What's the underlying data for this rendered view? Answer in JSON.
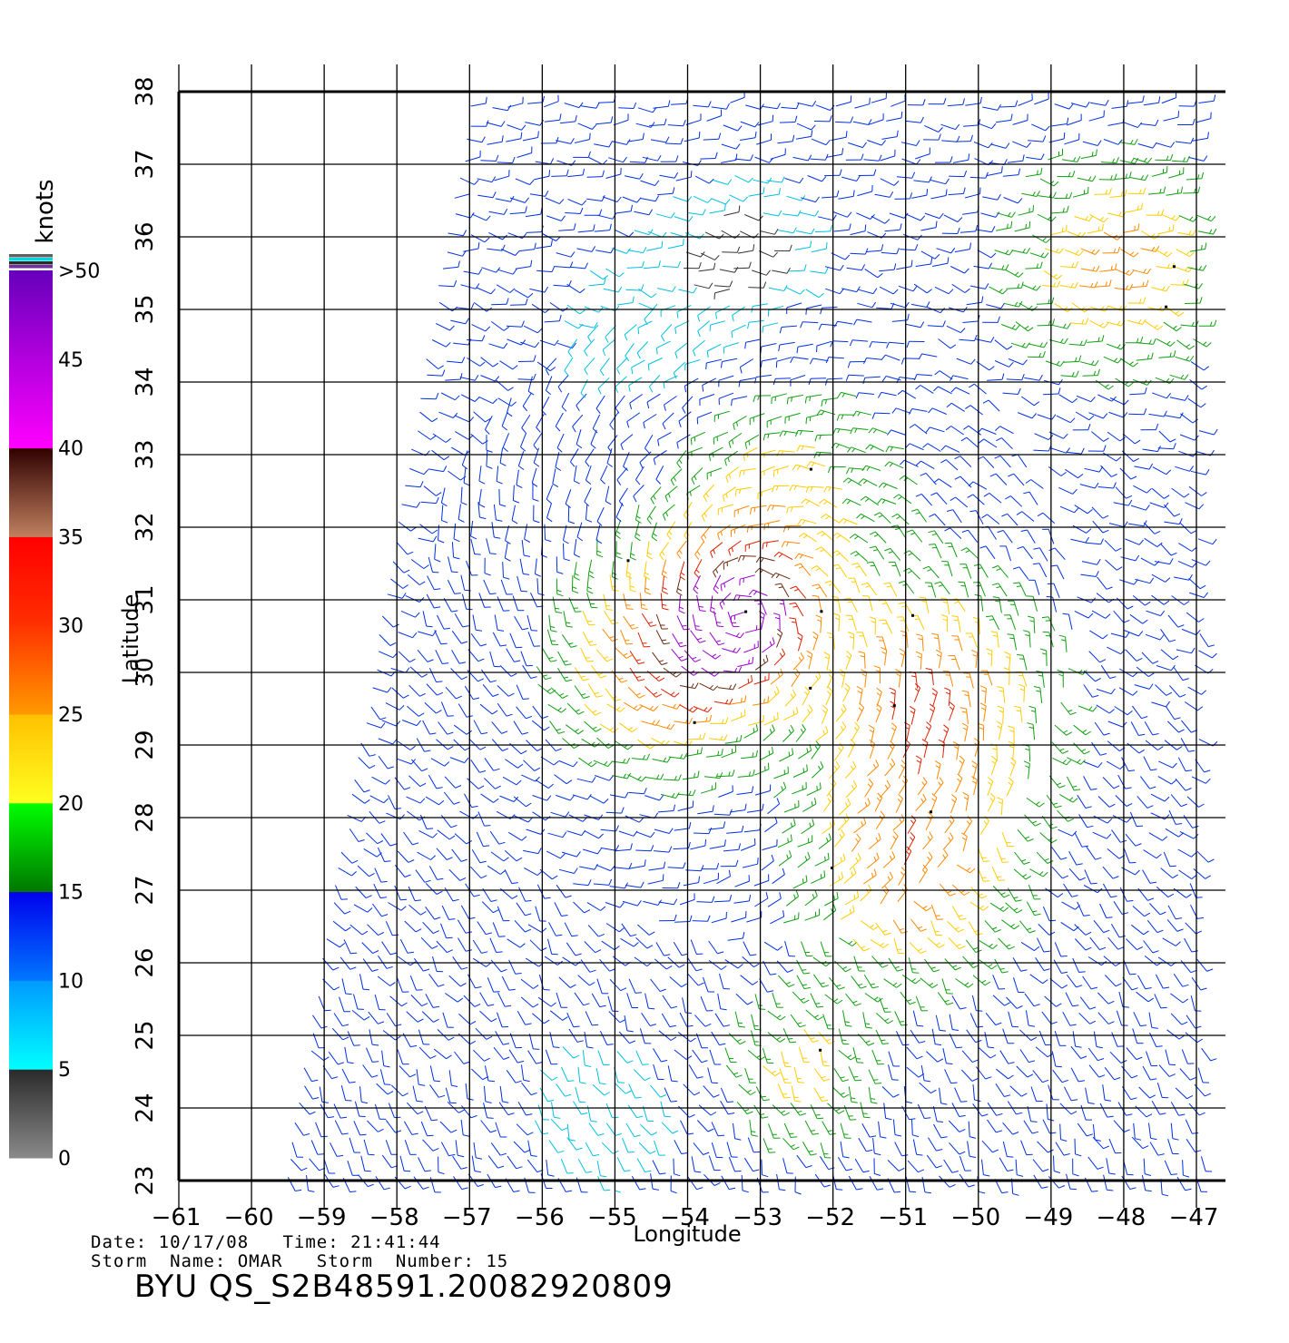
{
  "chart_data": {
    "type": "wind-barb-map",
    "xlabel": "Longitude",
    "ylabel": "Latitude",
    "xlim": [
      -61,
      -47
    ],
    "ylim": [
      23,
      38
    ],
    "x_ticks": [
      "−61",
      "−60",
      "−59",
      "−58",
      "−57",
      "−56",
      "−55",
      "−54",
      "−53",
      "−52",
      "−51",
      "−50",
      "−49",
      "−48",
      "−47"
    ],
    "y_ticks": [
      "23",
      "24",
      "25",
      "26",
      "27",
      "28",
      "29",
      "30",
      "31",
      "32",
      "33",
      "34",
      "35",
      "36",
      "37",
      "38"
    ],
    "grid": true,
    "swath_edge": [
      [
        -59.6,
        23.0
      ],
      [
        -57.0,
        38.0
      ]
    ],
    "storm_center": [
      -53.2,
      30.8
    ],
    "colorbar": {
      "unit": "knots",
      "labels": [
        {
          "text": "0",
          "value": 0
        },
        {
          "text": "5",
          "value": 5
        },
        {
          "text": "10",
          "value": 10
        },
        {
          "text": "15",
          "value": 15
        },
        {
          "text": "20",
          "value": 20
        },
        {
          "text": "25",
          "value": 25
        },
        {
          "text": "30",
          "value": 30
        },
        {
          "text": "35",
          "value": 35
        },
        {
          "text": "40",
          "value": 40
        },
        {
          "text": "45",
          "value": 45
        },
        {
          "text": ">50",
          "value": 50
        }
      ],
      "bands": [
        {
          "from": 0,
          "to": 5,
          "colors": [
            "#8a8a8a",
            "#2a2a2a"
          ]
        },
        {
          "from": 5,
          "to": 10,
          "colors": [
            "#00ffff",
            "#0099ff"
          ]
        },
        {
          "from": 10,
          "to": 15,
          "colors": [
            "#0077ff",
            "#0000ee"
          ]
        },
        {
          "from": 15,
          "to": 20,
          "colors": [
            "#007700",
            "#00ff00"
          ]
        },
        {
          "from": 20,
          "to": 25,
          "colors": [
            "#ffff20",
            "#ffc000"
          ]
        },
        {
          "from": 25,
          "to": 30,
          "colors": [
            "#ff9900",
            "#ff3300"
          ]
        },
        {
          "from": 30,
          "to": 35,
          "colors": [
            "#ff3000",
            "#ff0000"
          ]
        },
        {
          "from": 35,
          "to": 40,
          "colors": [
            "#c08060",
            "#300000"
          ]
        },
        {
          "from": 40,
          "to": 50,
          "colors": [
            "#ff00ff",
            "#6600bb"
          ]
        }
      ]
    },
    "wind_regions": [
      {
        "lon": -53.3,
        "lat": 30.8,
        "speed": 44,
        "spread": 0.9
      },
      {
        "lon": -54.3,
        "lat": 30.2,
        "speed": 33,
        "spread": 1.3
      },
      {
        "lon": -50.7,
        "lat": 29.5,
        "speed": 31,
        "spread": 1.5
      },
      {
        "lon": -51.0,
        "lat": 27.2,
        "speed": 28,
        "spread": 1.3
      },
      {
        "lon": -52.7,
        "lat": 32.3,
        "speed": 24,
        "spread": 1.5
      },
      {
        "lon": -48.2,
        "lat": 35.6,
        "speed": 27,
        "spread": 1.3
      },
      {
        "lon": -52.5,
        "lat": 24.6,
        "speed": 22,
        "spread": 1.0
      },
      {
        "lon": -53.3,
        "lat": 35.8,
        "speed": 3,
        "spread": 0.9
      },
      {
        "lon": -55.2,
        "lat": 24.0,
        "speed": 8,
        "spread": 1.3
      },
      {
        "lon": -54.5,
        "lat": 34.8,
        "speed": 8,
        "spread": 1.6
      }
    ],
    "background_speed": 12.5
  },
  "footer": {
    "date_line": "Date: 10/17/08   Time: 21:41:44",
    "storm_line": "Storm  Name: OMAR   Storm  Number: 15",
    "file_id": "BYU  QS_S2B48591.20082920809"
  }
}
